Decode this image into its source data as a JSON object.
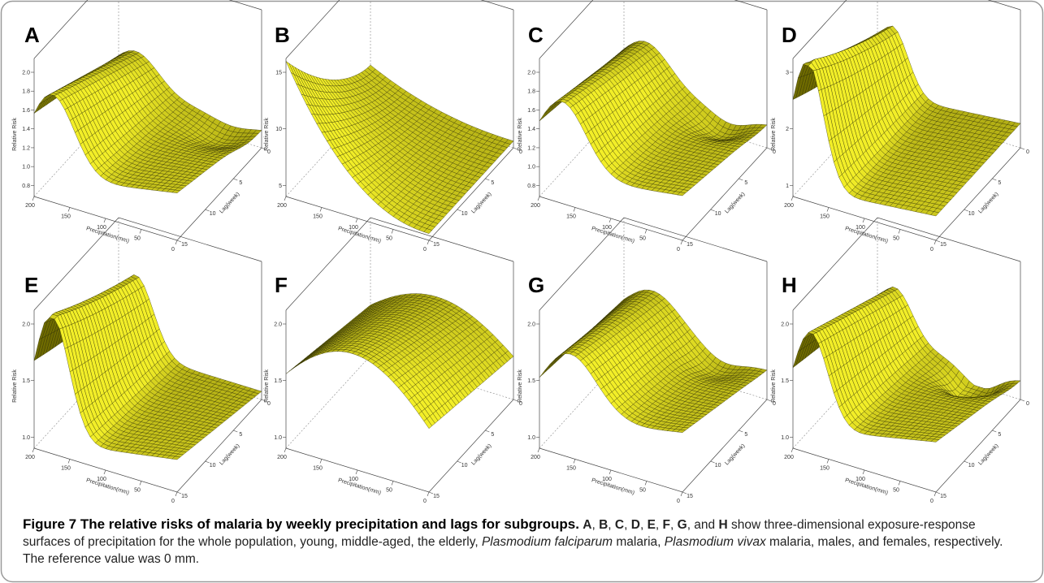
{
  "figure": {
    "caption_title": "Figure 7 The relative risks of malaria by weekly precipitation and lags for subgroups.",
    "caption_parts": {
      "p1": "A",
      "s1": ", ",
      "p2": "B",
      "s2": ", ",
      "p3": "C",
      "s3": ", ",
      "p4": "D",
      "s4": ", ",
      "p5": "E",
      "s5": ", ",
      "p6": "F",
      "s6": ", ",
      "p7": "G",
      "s7": ", and ",
      "p8": "H",
      "t1": " show three-dimensional exposure-response surfaces of precipitation for the whole population, young, middle-aged, the elderly, ",
      "i1": "Plasmodium falciparum",
      "t2": " malaria, ",
      "i2": "Plasmodium vivax",
      "t3": " malaria, males, and females, respectively. The reference value was 0 mm."
    }
  },
  "axis_text": {
    "zlabel": "Relative Risk",
    "xlabel": "Precipitation(mm)",
    "ylabel": "Lag(week)",
    "x_ticks": [
      "200",
      "150",
      "100",
      "50",
      "0"
    ],
    "y_ticks": [
      "0",
      "5",
      "10",
      "15"
    ]
  },
  "colors": {
    "surface": "#c8c400",
    "surface_light": "#f2ee28",
    "surface_dark": "#6e6a00",
    "frame": "#333333"
  },
  "chart_data": [
    {
      "panel": "A",
      "type": "surface",
      "z_ticks": [
        "0.8",
        "1.0",
        "1.2",
        "1.4",
        "1.6",
        "1.8",
        "2.0"
      ],
      "zlim": [
        0.8,
        2.0
      ]
    },
    {
      "panel": "B",
      "type": "surface",
      "z_ticks": [
        "5",
        "10",
        "15"
      ],
      "zlim": [
        1,
        20
      ]
    },
    {
      "panel": "C",
      "type": "surface",
      "z_ticks": [
        "0.8",
        "1.0",
        "1.2",
        "1.4",
        "1.6",
        "1.8",
        "2.0"
      ],
      "zlim": [
        0.8,
        2.0
      ]
    },
    {
      "panel": "D",
      "type": "surface",
      "z_ticks": [
        "1",
        "2",
        "3"
      ],
      "zlim": [
        0.8,
        3.6
      ]
    },
    {
      "panel": "E",
      "type": "surface",
      "z_ticks": [
        "1.0",
        "1.5",
        "2.0"
      ],
      "zlim": [
        0.6,
        2.4
      ]
    },
    {
      "panel": "F",
      "type": "surface",
      "z_ticks": [
        "1.0",
        "1.5",
        "2.0"
      ],
      "zlim": [
        0.8,
        2.1
      ]
    },
    {
      "panel": "G",
      "type": "surface",
      "z_ticks": [
        "1.0",
        "1.5",
        "2.0"
      ],
      "zlim": [
        0.8,
        2.1
      ]
    },
    {
      "panel": "H",
      "type": "surface",
      "z_ticks": [
        "1.0",
        "1.5",
        "2.0"
      ],
      "zlim": [
        0.6,
        2.3
      ]
    }
  ]
}
